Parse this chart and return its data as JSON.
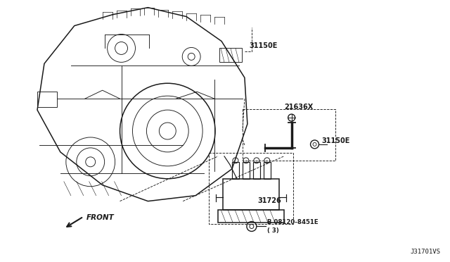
{
  "bg_color": "#ffffff",
  "lc": "#1a1a1a",
  "tc": "#1a1a1a",
  "diagram_id": "J31701VS",
  "label_31150E_top": "31150E",
  "label_21636X": "21636X",
  "label_31150E_mid": "31150E",
  "label_31726": "31726",
  "label_bolt": "B 08120-8451E",
  "label_bolt2": "( 3)",
  "label_front": "FRONT",
  "figsize": [
    6.4,
    3.72
  ],
  "dpi": 100
}
